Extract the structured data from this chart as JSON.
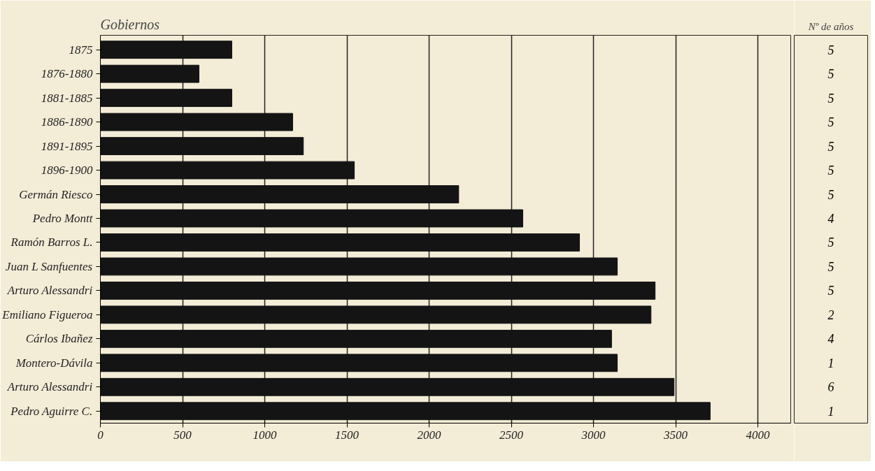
{
  "chart_data": {
    "type": "bar",
    "orientation": "horizontal",
    "ylabel": "Gobiernos",
    "y2label": "Nº de años",
    "categories": [
      "1875",
      "1876-1880",
      "1881-1885",
      "1886-1890",
      "1891-1895",
      "1896-1900",
      "Germán Riesco",
      "Pedro Montt",
      "Ramón Barros L.",
      "Juan L Sanfuentes",
      "Arturo Alessandri",
      "Emiliano Figueroa",
      "Cárlos Ibañez",
      "Montero-Dávila",
      "Arturo Alessandri",
      "Pedro Aguirre C."
    ],
    "values": [
      800,
      600,
      800,
      1170,
      1235,
      1545,
      2180,
      2570,
      2915,
      3145,
      3375,
      3350,
      3110,
      3145,
      3490,
      3710
    ],
    "color": "#141414",
    "xlim": [
      0,
      4200
    ],
    "xticks": [
      0,
      500,
      1000,
      1500,
      2000,
      2500,
      3000,
      3500,
      4000
    ],
    "grid": "x",
    "annotations": [
      "5",
      "5",
      "5",
      "5",
      "5",
      "5",
      "5",
      "4",
      "5",
      "5",
      "5",
      "2",
      "4",
      "1",
      "6",
      "1"
    ]
  }
}
